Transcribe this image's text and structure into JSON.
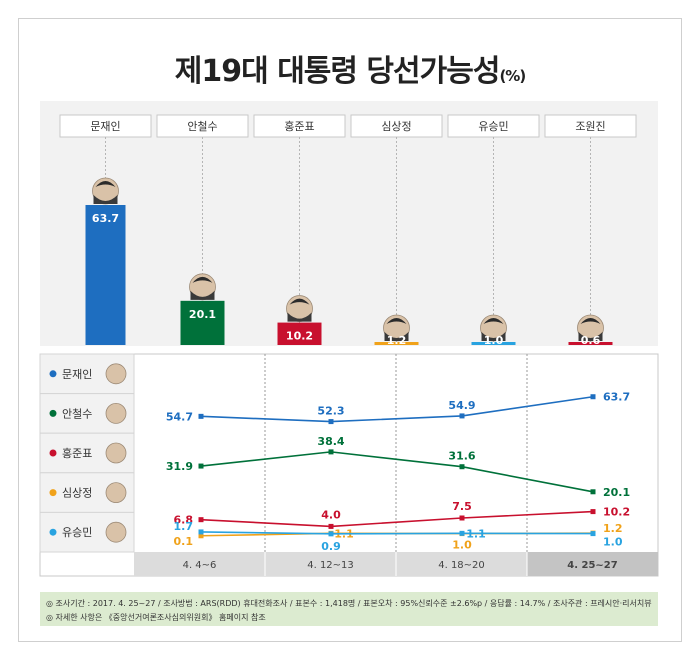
{
  "title": "제19대 대통령 당선가능성",
  "title_unit": "(%)",
  "chart_data": [
    {
      "type": "bar",
      "categories": [
        "문재인",
        "안철수",
        "홍준표",
        "심상정",
        "유승민",
        "조원진"
      ],
      "values": [
        63.7,
        20.1,
        10.2,
        1.2,
        1.0,
        0.6
      ],
      "labels": [
        "63.7",
        "20.1",
        "10.2",
        "1.2",
        "1.0",
        "0.6"
      ],
      "colors": [
        "#1e6ec0",
        "#00713a",
        "#c8102e",
        "#f0a21a",
        "#29a3e0",
        "#c8102e"
      ]
    },
    {
      "type": "line",
      "x": [
        "4. 4~6",
        "4. 12~13",
        "4. 18~20",
        "4. 25~27"
      ],
      "series": [
        {
          "name": "문재인",
          "color": "#1e6ec0",
          "values": [
            54.7,
            52.3,
            54.9,
            63.7
          ],
          "labels": [
            "54.7",
            "52.3",
            "54.9",
            "63.7"
          ]
        },
        {
          "name": "안철수",
          "color": "#00713a",
          "values": [
            31.9,
            38.4,
            31.6,
            20.1
          ],
          "labels": [
            "31.9",
            "38.4",
            "31.6",
            "20.1"
          ]
        },
        {
          "name": "홍준표",
          "color": "#c8102e",
          "values": [
            6.8,
            4.0,
            7.5,
            10.2
          ],
          "labels": [
            "6.8",
            "4.0",
            "7.5",
            "10.2"
          ]
        },
        {
          "name": "심상정",
          "color": "#f0a21a",
          "values": [
            0.1,
            1.1,
            1.0,
            1.2
          ],
          "labels": [
            "0.1",
            "1.1",
            "1.0",
            "1.2"
          ]
        },
        {
          "name": "유승민",
          "color": "#29a3e0",
          "values": [
            1.7,
            0.9,
            1.1,
            1.0
          ],
          "labels": [
            "1.7",
            "0.9",
            "1.1",
            "1.0"
          ]
        }
      ]
    }
  ],
  "footer": {
    "line1": "◎ 조사기간 : 2017. 4. 25~27 / 조사방법 : ARS(RDD) 휴대전화조사 / 표본수 : 1,418명 / 표본오차 : 95%신뢰수준 ±2.6%p / 응답률 : 14.7% / 조사주관 : 프레시안·리서치뷰",
    "line2": "◎ 자세한 사항은 《중앙선거여론조사심의위원회》 홈페이지 참조"
  }
}
